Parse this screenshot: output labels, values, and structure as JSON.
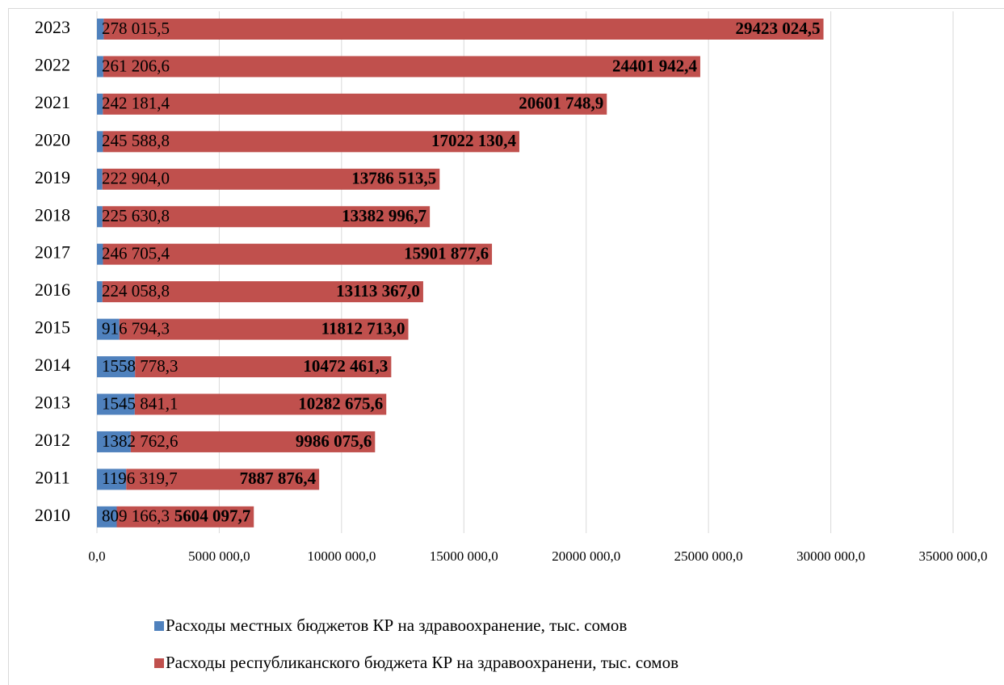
{
  "chart_data": {
    "type": "stacked_barh",
    "categories": [
      "2010",
      "2011",
      "2012",
      "2013",
      "2014",
      "2015",
      "2016",
      "2017",
      "2018",
      "2019",
      "2020",
      "2021",
      "2022",
      "2023"
    ],
    "series": [
      {
        "name": "Расходы местных бюджетов КР на здравоохранение, тыс. сомов",
        "color": "#4f81bd",
        "values": [
          809166.3,
          1196319.7,
          1382762.6,
          1545841.1,
          1558778.3,
          916794.3,
          224058.8,
          246705.4,
          225630.8,
          222904.0,
          245588.8,
          242181.4,
          261206.6,
          278015.5
        ],
        "value_labels": [
          "809 166,3",
          "1196 319,7",
          "1382 762,6",
          "1545 841,1",
          "1558 778,3",
          "916 794,3",
          "224 058,8",
          "246 705,4",
          "225 630,8",
          "222 904,0",
          "245 588,8",
          "242 181,4",
          "261 206,6",
          "278 015,5"
        ]
      },
      {
        "name": "Расходы республиканского бюджета КР на здравоохранени, тыс. сомов",
        "color": "#c0504d",
        "values": [
          5604097.7,
          7887876.4,
          9986075.6,
          10282675.6,
          10472461.3,
          11812713.0,
          13113367.0,
          15901877.6,
          13382996.7,
          13786513.5,
          17022130.4,
          20601748.9,
          24401942.4,
          29423024.5
        ],
        "value_labels": [
          "5604 097,7",
          "7887 876,4",
          "9986 075,6",
          "10282 675,6",
          "10472 461,3",
          "11812 713,0",
          "13113 367,0",
          "15901 877,6",
          "13382 996,7",
          "13786 513,5",
          "17022 130,4",
          "20601 748,9",
          "24401 942,4",
          "29423 024,5"
        ]
      }
    ],
    "xlim": [
      0,
      35000000
    ],
    "xticks": [
      {
        "value": 0,
        "label": "0,0"
      },
      {
        "value": 5000000,
        "label": "5000 000,0"
      },
      {
        "value": 10000000,
        "label": "10000 000,0"
      },
      {
        "value": 15000000,
        "label": "15000 000,0"
      },
      {
        "value": 20000000,
        "label": "20000 000,0"
      },
      {
        "value": 25000000,
        "label": "25000 000,0"
      },
      {
        "value": 30000000,
        "label": "30000 000,0"
      },
      {
        "value": 35000000,
        "label": "35000 000,0"
      }
    ],
    "grid": true
  }
}
